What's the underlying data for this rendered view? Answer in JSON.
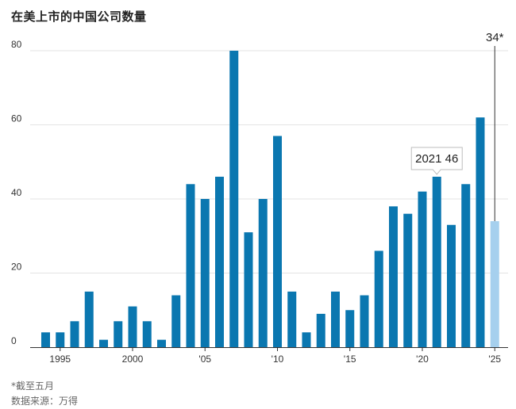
{
  "title": "在美上市的中国公司数量",
  "footnote": "*截至五月",
  "source": "数据来源：万得",
  "chart_data": {
    "type": "bar",
    "title": "在美上市的中国公司数量",
    "x": [
      1994,
      1995,
      1996,
      1997,
      1998,
      1999,
      2000,
      2001,
      2002,
      2003,
      2004,
      2005,
      2006,
      2007,
      2008,
      2009,
      2010,
      2011,
      2012,
      2013,
      2014,
      2015,
      2016,
      2017,
      2018,
      2019,
      2020,
      2021,
      2022,
      2023,
      2024,
      2025
    ],
    "values": [
      4,
      4,
      7,
      15,
      2,
      7,
      11,
      7,
      2,
      14,
      44,
      40,
      46,
      80,
      31,
      40,
      57,
      15,
      4,
      9,
      15,
      10,
      14,
      26,
      38,
      36,
      42,
      46,
      33,
      44,
      62,
      34
    ],
    "ylim": [
      0,
      80
    ],
    "yticks": [
      "0",
      "20",
      "40",
      "60",
      "80"
    ],
    "xticks": [
      {
        "year": 1995,
        "label": "1995"
      },
      {
        "year": 2000,
        "label": "2000"
      },
      {
        "year": 2005,
        "label": "'05"
      },
      {
        "year": 2010,
        "label": "'10"
      },
      {
        "year": 2015,
        "label": "'15"
      },
      {
        "year": 2020,
        "label": "'20"
      },
      {
        "year": 2025,
        "label": "'25"
      }
    ],
    "colors": {
      "bar": "#0a77b0",
      "highlight": "#a6d0ee"
    },
    "highlight_year": 2025,
    "annotations": [
      {
        "year": 2021,
        "text": "2021 46"
      },
      {
        "year": 2025,
        "text": "34*"
      }
    ],
    "grid": true
  }
}
